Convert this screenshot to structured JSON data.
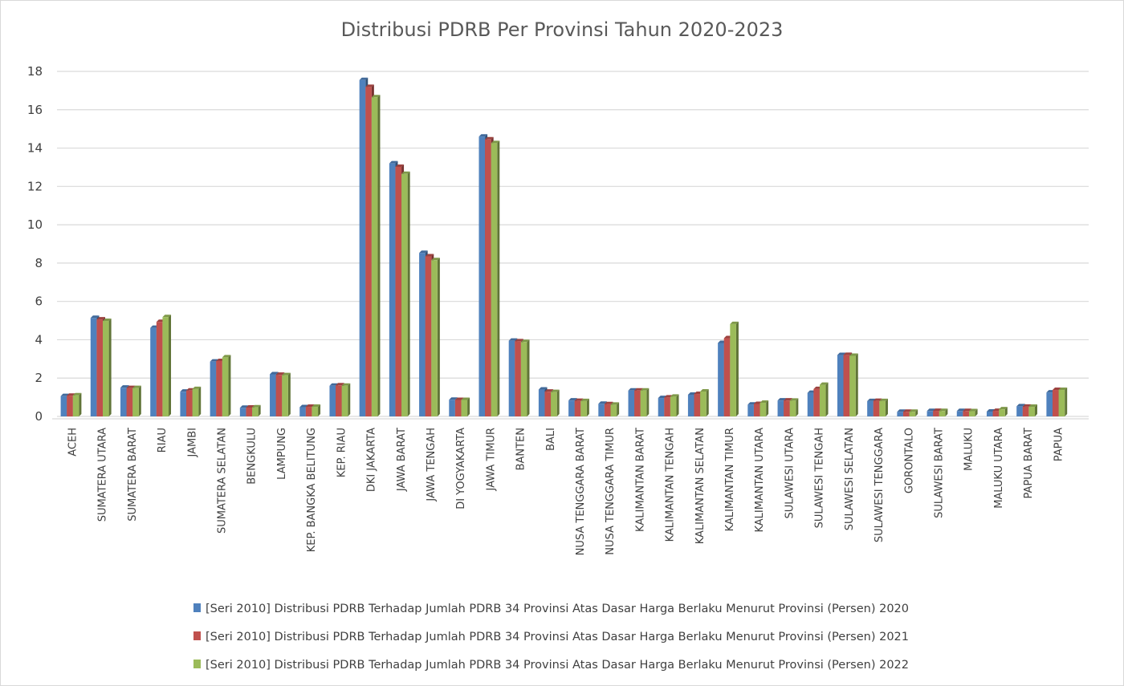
{
  "chart_data": {
    "type": "bar",
    "title": "Distribusi PDRB Per Provinsi Tahun 2020-2023",
    "xlabel": "",
    "ylabel": "",
    "ylim": [
      0,
      18
    ],
    "yticks": [
      "0",
      "2",
      "4",
      "6",
      "8",
      "10",
      "12",
      "14",
      "16",
      "18"
    ],
    "grid": true,
    "legend_position": "bottom",
    "categories": [
      "ACEH",
      "SUMATERA UTARA",
      "SUMATERA BARAT",
      "RIAU",
      "JAMBI",
      "SUMATERA SELATAN",
      "BENGKULU",
      "LAMPUNG",
      "KEP. BANGKA BELITUNG",
      "KEP. RIAU",
      "DKI JAKARTA",
      "JAWA BARAT",
      "JAWA TENGAH",
      "DI YOGYAKARTA",
      "JAWA TIMUR",
      "BANTEN",
      "BALI",
      "NUSA TENGGARA BARAT",
      "NUSA TENGGARA TIMUR",
      "KALIMANTAN BARAT",
      "KALIMANTAN TENGAH",
      "KALIMANTAN SELATAN",
      "KALIMANTAN TIMUR",
      "KALIMANTAN UTARA",
      "SULAWESI UTARA",
      "SULAWESI TENGAH",
      "SULAWESI SELATAN",
      "SULAWESI TENGGARA",
      "GORONTALO",
      "SULAWESI BARAT",
      "MALUKU",
      "MALUKU UTARA",
      "PAPUA BARAT",
      "PAPUA"
    ],
    "series": [
      {
        "name": "[Seri 2010] Distribusi PDRB Terhadap Jumlah PDRB 34 Provinsi Atas Dasar Harga Berlaku Menurut Provinsi (Persen) 2020",
        "color": "#4f81bd",
        "values": [
          1.06,
          5.14,
          1.5,
          4.62,
          1.29,
          2.86,
          0.45,
          2.2,
          0.48,
          1.6,
          17.55,
          13.2,
          8.53,
          0.87,
          14.6,
          3.95,
          1.4,
          0.83,
          0.66,
          1.35,
          0.96,
          1.13,
          3.83,
          0.62,
          0.83,
          1.23,
          3.2,
          0.8,
          0.24,
          0.28,
          0.28,
          0.25,
          0.53,
          1.25
        ]
      },
      {
        "name": "[Seri 2010] Distribusi PDRB Terhadap Jumlah PDRB 34 Provinsi Atas Dasar Harga Berlaku Menurut Provinsi (Persen) 2021",
        "color": "#c0504d",
        "values": [
          1.08,
          5.06,
          1.48,
          4.93,
          1.35,
          2.89,
          0.46,
          2.17,
          0.5,
          1.62,
          17.19,
          13.02,
          8.35,
          0.86,
          14.45,
          3.92,
          1.29,
          0.81,
          0.64,
          1.35,
          0.99,
          1.17,
          4.08,
          0.65,
          0.83,
          1.43,
          3.21,
          0.81,
          0.24,
          0.29,
          0.28,
          0.29,
          0.51,
          1.38
        ]
      },
      {
        "name": "[Seri 2010] Distribusi PDRB Terhadap Jumlah PDRB 34 Provinsi Atas Dasar Harga Berlaku Menurut Provinsi (Persen) 2022",
        "color": "#9bbb59",
        "values": [
          1.1,
          4.98,
          1.48,
          5.18,
          1.43,
          3.08,
          0.47,
          2.15,
          0.5,
          1.6,
          16.65,
          12.65,
          8.15,
          0.86,
          14.26,
          3.88,
          1.27,
          0.8,
          0.61,
          1.35,
          1.03,
          1.3,
          4.82,
          0.71,
          0.82,
          1.65,
          3.16,
          0.8,
          0.24,
          0.28,
          0.27,
          0.37,
          0.5,
          1.38
        ]
      }
    ]
  }
}
